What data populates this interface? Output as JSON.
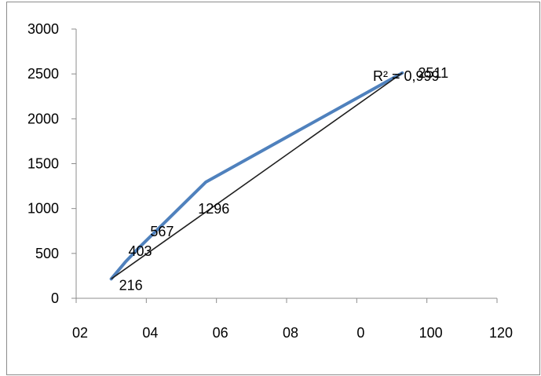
{
  "chart_data": {
    "type": "line",
    "title": "",
    "xlabel": "",
    "ylabel": "",
    "x_ticks": [
      "02",
      "04",
      "06",
      "08",
      "0",
      "100",
      "120"
    ],
    "y_ticks": [
      "0",
      "500",
      "1000",
      "1500",
      "2000",
      "2500",
      "3000"
    ],
    "ylim": [
      0,
      3000
    ],
    "xlim": [
      0,
      120
    ],
    "grid": false,
    "legend": "none",
    "series": [
      {
        "x": [
          10,
          14,
          18,
          37,
          93
        ],
        "y": [
          216,
          403,
          567,
          1296,
          2511
        ],
        "labels": [
          "216",
          "403",
          "567",
          "1296",
          "2511"
        ],
        "color": "#4f81bd"
      }
    ],
    "trendline": {
      "x": [
        10,
        93
      ],
      "y": [
        216,
        2511
      ],
      "color": "#1f1f1f",
      "annotation": "R² = 0,999"
    }
  }
}
